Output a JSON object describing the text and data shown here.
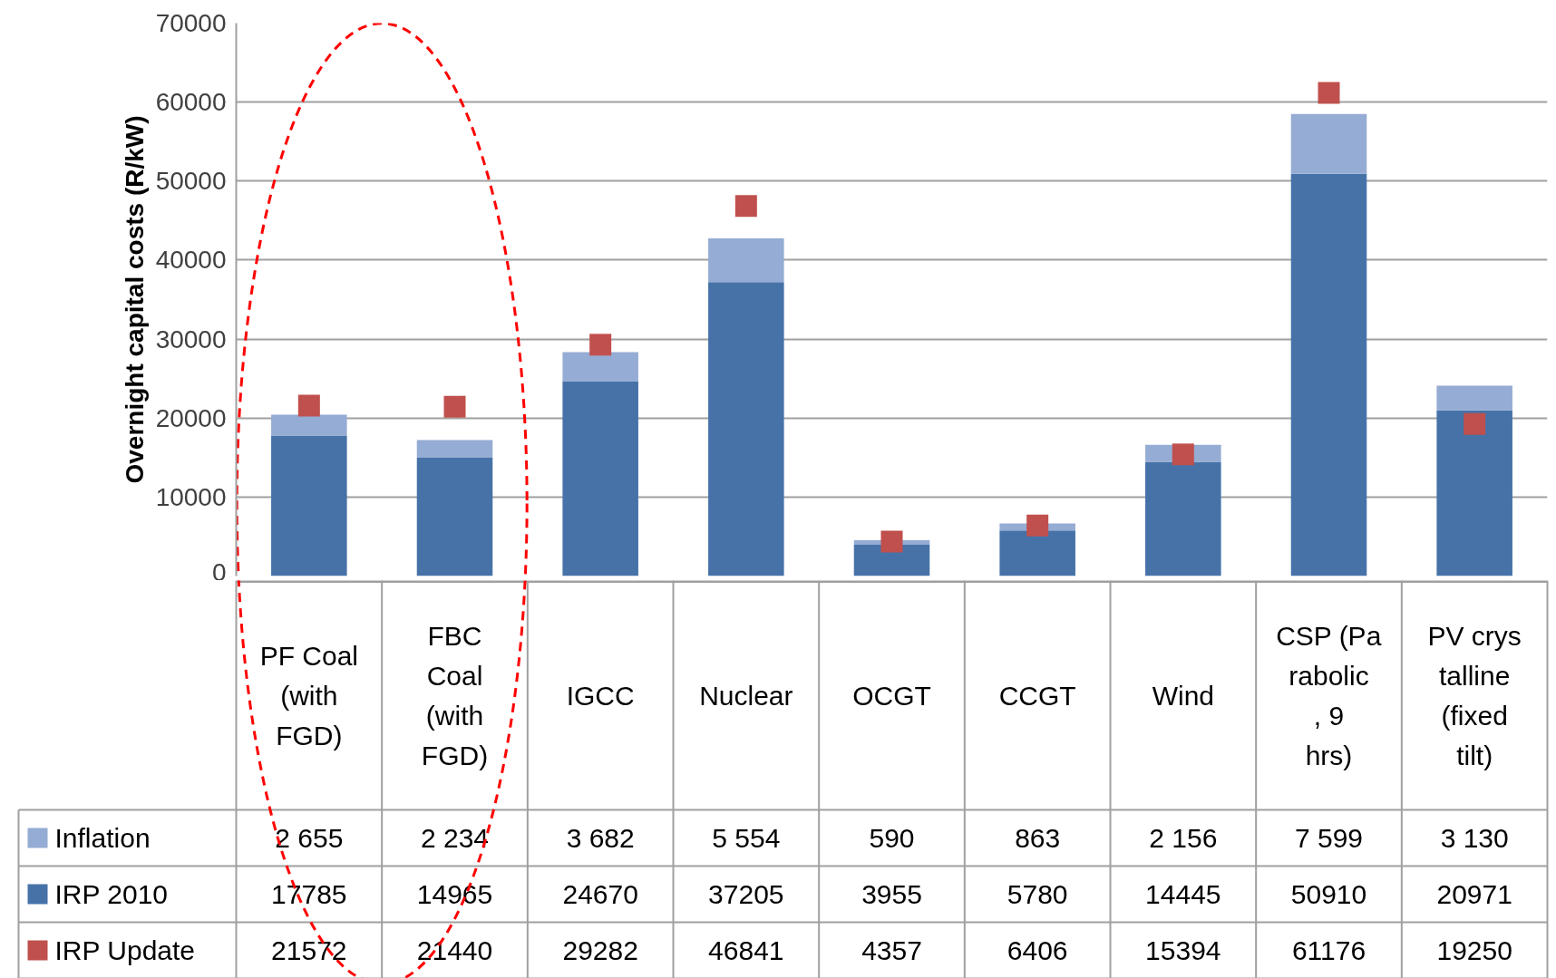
{
  "chart_data": {
    "type": "bar",
    "stacked": true,
    "ylabel": "Overnight capital costs (R/kW)",
    "categories": [
      "PF Coal (with FGD)",
      "FBC Coal (with FGD)",
      "IGCC",
      "Nuclear",
      "OCGT",
      "CCGT",
      "Wind",
      "CSP (Parabolic, 9 hrs)",
      "PV crystalline (fixed tilt)"
    ],
    "ylim": [
      0,
      70000
    ],
    "yticks": [
      0,
      10000,
      20000,
      30000,
      40000,
      50000,
      60000,
      70000
    ],
    "grid": "y",
    "legend": "bottom",
    "series": [
      {
        "name": "IRP 2010",
        "color": "#4672a8",
        "values": [
          17785,
          14965,
          24670,
          37205,
          3955,
          5780,
          14445,
          50910,
          20971
        ],
        "value_labels": [
          "17785",
          "14965",
          "24670",
          "37205",
          "3955",
          "5780",
          "14445",
          "50910",
          "20971"
        ]
      },
      {
        "name": "Inflation",
        "color": "#95acd4",
        "values": [
          2655,
          2234,
          3682,
          5554,
          590,
          863,
          2156,
          7599,
          3130
        ],
        "value_labels": [
          "2 655",
          "2 234",
          "3 682",
          "5 554",
          "590",
          "863",
          "2 156",
          "7 599",
          "3 130"
        ]
      },
      {
        "name": "IRP Update",
        "type": "scatter",
        "marker": "square",
        "color": "#c0504d",
        "values": [
          21572,
          21440,
          29282,
          46841,
          4357,
          6406,
          15394,
          61176,
          19250
        ],
        "value_labels": [
          "21572",
          "21440",
          "29282",
          "46841",
          "4357",
          "6406",
          "15394",
          "61176",
          "19250"
        ]
      }
    ]
  }
}
